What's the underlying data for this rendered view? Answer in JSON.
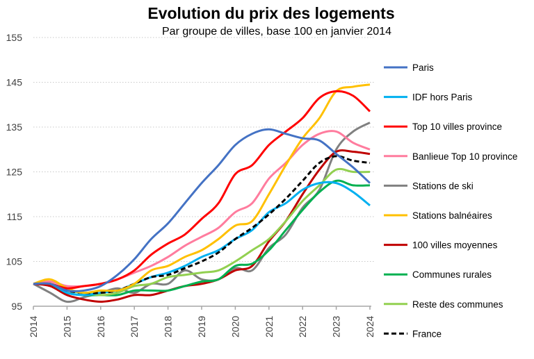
{
  "chart_data": {
    "type": "line",
    "title": "Evolution du prix des logements",
    "subtitle": "Par groupe de villes, base 100 en janvier 2014",
    "xlabel": "",
    "ylabel": "",
    "ylim": [
      95,
      155
    ],
    "yticks": [
      "95",
      "105",
      "115",
      "125",
      "135",
      "145",
      "155"
    ],
    "xlim": [
      2014,
      2024
    ],
    "xticks": [
      "2014",
      "2015",
      "2016",
      "2017",
      "2018",
      "2019",
      "2020",
      "2021",
      "2022",
      "2023",
      "2024"
    ],
    "grid": "horizontal dotted",
    "legend": "right",
    "x": [
      2014,
      2014.5,
      2015,
      2015.5,
      2016,
      2016.5,
      2017,
      2017.5,
      2018,
      2018.5,
      2019,
      2019.5,
      2020,
      2020.5,
      2021,
      2021.5,
      2022,
      2022.5,
      2023,
      2023.5,
      2024
    ],
    "series": [
      {
        "name": "Paris",
        "color": "#4472C4",
        "dashed": false,
        "values": [
          100,
          100,
          98.5,
          98.5,
          99.5,
          102,
          105.5,
          110,
          113.5,
          118,
          122.5,
          126.5,
          131,
          133.5,
          134.5,
          133.5,
          132.5,
          132,
          129,
          126,
          122.5
        ]
      },
      {
        "name": "IDF hors Paris",
        "color": "#00B0F0",
        "dashed": false,
        "values": [
          100,
          100,
          98,
          97.5,
          98,
          98.5,
          100,
          101.5,
          102.5,
          104,
          106,
          107.5,
          110,
          112,
          116,
          118,
          121,
          122.5,
          122.5,
          120.5,
          117.5
        ]
      },
      {
        "name": "Top 10 villes province",
        "color": "#FF0000",
        "dashed": false,
        "values": [
          100,
          100,
          99,
          99.5,
          100,
          101,
          103,
          106.5,
          109,
          111,
          114.5,
          118,
          124.5,
          126.5,
          131,
          134,
          137,
          141.5,
          143,
          142,
          138.5
        ]
      },
      {
        "name": "Banlieue Top 10 province",
        "color": "#FF7C9E",
        "dashed": false,
        "values": [
          100,
          100.5,
          99.5,
          99.5,
          100,
          101,
          102.5,
          104,
          106,
          108.5,
          110.5,
          112.5,
          116,
          118,
          123.5,
          127,
          131,
          133.5,
          134,
          131.5,
          130
        ]
      },
      {
        "name": "Stations de ski",
        "color": "#808080",
        "dashed": false,
        "values": [
          100,
          98,
          96,
          97,
          98,
          99,
          98,
          100,
          100,
          103,
          101,
          101,
          103.5,
          103,
          108,
          111,
          117,
          121,
          130,
          134,
          136
        ]
      },
      {
        "name": "Stations balnéaires",
        "color": "#FFC000",
        "dashed": false,
        "values": [
          100,
          101,
          99,
          98,
          98.5,
          98.5,
          100,
          103,
          104,
          106,
          107.5,
          110,
          113,
          114,
          120,
          126.5,
          132.5,
          137,
          143,
          144,
          144.5
        ]
      },
      {
        "name": "100 villes moyennes",
        "color": "#C00000",
        "dashed": false,
        "values": [
          100,
          99.5,
          97.5,
          96.5,
          96,
          96.5,
          97.5,
          97.5,
          98.5,
          99.5,
          100,
          101,
          103,
          104,
          109.5,
          114,
          120,
          125.5,
          129.5,
          129.5,
          129
        ]
      },
      {
        "name": "Communes rurales",
        "color": "#00B050",
        "dashed": false,
        "values": [
          100,
          100,
          98,
          97.5,
          97.5,
          97.5,
          98.5,
          98.5,
          98.5,
          99.5,
          100.5,
          101,
          104,
          104.5,
          107.5,
          112,
          116.5,
          120.5,
          123,
          122,
          122
        ]
      },
      {
        "name": "Reste des communes",
        "color": "#92D050",
        "dashed": false,
        "values": [
          100,
          100,
          98.5,
          98,
          97.5,
          98,
          99.5,
          100,
          101.5,
          102,
          102.5,
          103,
          105,
          107.5,
          110,
          114,
          118.5,
          122,
          125.5,
          125,
          125
        ]
      },
      {
        "name": "France",
        "color": "#000000",
        "dashed": true,
        "values": [
          100,
          100,
          98.5,
          98,
          98,
          98.5,
          100,
          101.5,
          102,
          103.5,
          105,
          107,
          110,
          112.5,
          115.5,
          119,
          123,
          127,
          128.5,
          127.5,
          127
        ]
      }
    ]
  }
}
